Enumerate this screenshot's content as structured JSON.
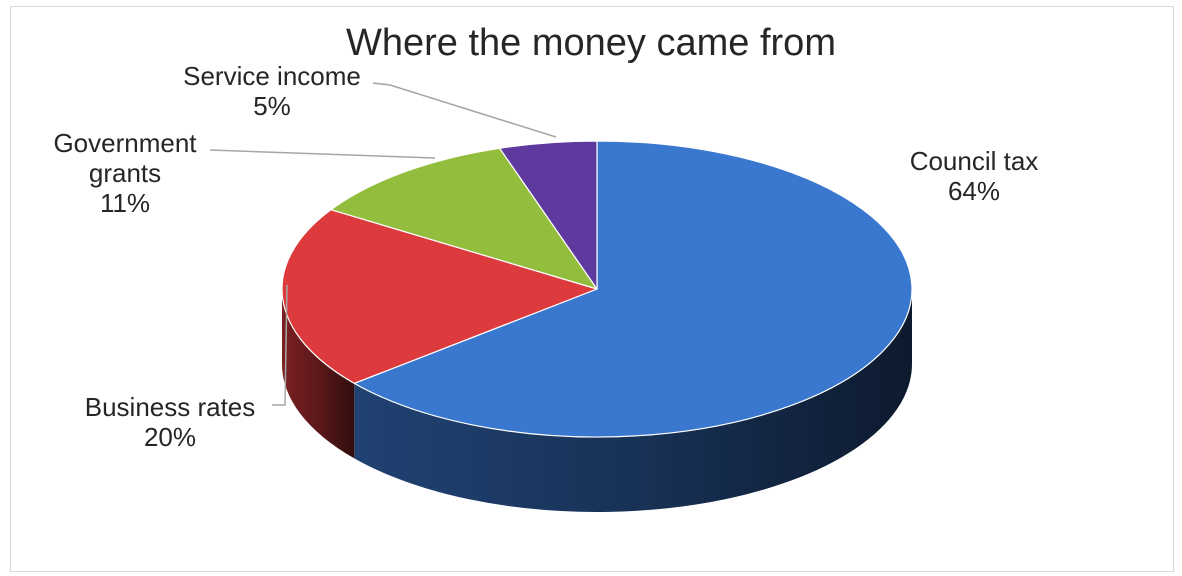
{
  "chart_data": {
    "type": "pie",
    "title": "Where the money came from",
    "three_d": true,
    "start_angle_deg": 0,
    "direction": "clockwise",
    "slices": [
      {
        "label": "Council tax",
        "value": 64,
        "value_text": "64%",
        "color": "#3a78d0"
      },
      {
        "label": "Business rates",
        "value": 20,
        "value_text": "20%",
        "color": "#dd3a3d"
      },
      {
        "label": "Government grants",
        "label_lines": [
          "Government",
          "grants"
        ],
        "value": 11,
        "value_text": "11%",
        "color": "#93bd3c"
      },
      {
        "label": "Service income",
        "value": 5,
        "value_text": "5%",
        "color": "#5f3a9e"
      }
    ],
    "legend": "none"
  }
}
